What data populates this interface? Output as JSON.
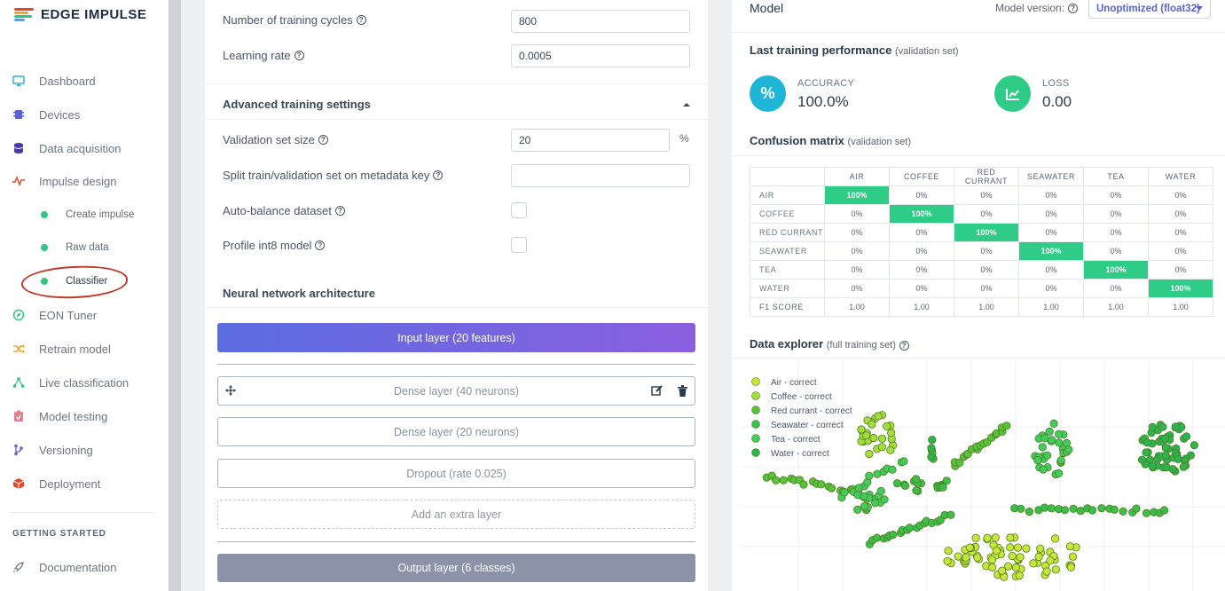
{
  "brand": {
    "name": "EDGE IMPULSE",
    "colors": [
      "#e8442a",
      "#f5a623",
      "#33c481",
      "#3fa9f5"
    ]
  },
  "sidebar": {
    "items": [
      {
        "label": "Dashboard",
        "icon": "monitor-icon"
      },
      {
        "label": "Devices",
        "icon": "chip-icon"
      },
      {
        "label": "Data acquisition",
        "icon": "database-icon"
      },
      {
        "label": "Impulse design",
        "icon": "pulse-icon"
      },
      {
        "label": "EON Tuner",
        "icon": "compass-icon"
      },
      {
        "label": "Retrain model",
        "icon": "shuffle-icon"
      },
      {
        "label": "Live classification",
        "icon": "network-icon"
      },
      {
        "label": "Model testing",
        "icon": "clipboard-check-icon"
      },
      {
        "label": "Versioning",
        "icon": "branch-icon"
      },
      {
        "label": "Deployment",
        "icon": "box-icon"
      }
    ],
    "subitems": [
      {
        "label": "Create impulse"
      },
      {
        "label": "Raw data"
      },
      {
        "label": "Classifier"
      }
    ],
    "section_title": "GETTING STARTED",
    "docs_label": "Documentation"
  },
  "training": {
    "cycles_label": "Number of training cycles",
    "cycles_value": "800",
    "lr_label": "Learning rate",
    "lr_value": "0.0005",
    "advanced_title": "Advanced training settings",
    "val_label": "Validation set size",
    "val_value": "20",
    "val_unit": "%",
    "split_label": "Split train/validation set on metadata key",
    "split_value": "",
    "autobalance_label": "Auto-balance dataset",
    "profile_label": "Profile int8 model",
    "arch_title": "Neural network architecture",
    "input_layer": "Input layer (20 features)",
    "dense1": "Dense layer (40 neurons)",
    "dense2": "Dense layer (20 neurons)",
    "dropout": "Dropout (rate 0.025)",
    "add_layer": "Add an extra layer",
    "output_layer": "Output layer (6 classes)"
  },
  "model": {
    "title": "Model",
    "version_label": "Model version:",
    "version_value": "Unoptimized (float32)",
    "perf_title": "Last training performance",
    "perf_sub": "(validation set)",
    "accuracy_label": "ACCURACY",
    "accuracy_value": "100.0%",
    "loss_label": "LOSS",
    "loss_value": "0.00",
    "cm_title": "Confusion matrix",
    "cm_sub": "(validation set)",
    "explorer_title": "Data explorer",
    "explorer_sub": "(full training set)",
    "accent_accuracy": "#1fb6d8",
    "accent_loss": "#2ecc87"
  },
  "chart_data": [
    {
      "type": "table",
      "title": "Confusion matrix",
      "columns": [
        "AIR",
        "COFFEE",
        "RED CURRANT",
        "SEAWATER",
        "TEA",
        "WATER"
      ],
      "rows": [
        {
          "label": "AIR",
          "values": [
            "100%",
            "0%",
            "0%",
            "0%",
            "0%",
            "0%"
          ]
        },
        {
          "label": "COFFEE",
          "values": [
            "0%",
            "100%",
            "0%",
            "0%",
            "0%",
            "0%"
          ]
        },
        {
          "label": "RED CURRANT",
          "values": [
            "0%",
            "0%",
            "100%",
            "0%",
            "0%",
            "0%"
          ]
        },
        {
          "label": "SEAWATER",
          "values": [
            "0%",
            "0%",
            "0%",
            "100%",
            "0%",
            "0%"
          ]
        },
        {
          "label": "TEA",
          "values": [
            "0%",
            "0%",
            "0%",
            "0%",
            "100%",
            "0%"
          ]
        },
        {
          "label": "WATER",
          "values": [
            "0%",
            "0%",
            "0%",
            "0%",
            "0%",
            "100%"
          ]
        },
        {
          "label": "F1 SCORE",
          "values": [
            "1.00",
            "1.00",
            "1.00",
            "1.00",
            "1.00",
            "1.00"
          ]
        }
      ]
    },
    {
      "type": "scatter",
      "title": "Data explorer",
      "legend_position": "top-left",
      "grid": true,
      "series": [
        {
          "name": "Air - correct",
          "color": "#c8e63a"
        },
        {
          "name": "Coffee - correct",
          "color": "#a6dd3c"
        },
        {
          "name": "Red currant - correct",
          "color": "#59c23a"
        },
        {
          "name": "Seawater - correct",
          "color": "#3dbd4a"
        },
        {
          "name": "Tea - correct",
          "color": "#42cc5e"
        },
        {
          "name": "Water - correct",
          "color": "#2fb350"
        }
      ]
    }
  ]
}
